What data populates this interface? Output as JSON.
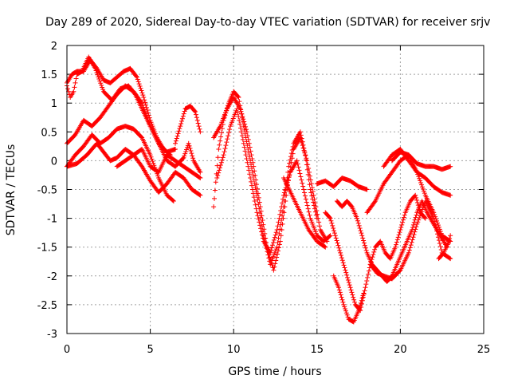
{
  "chart_data": {
    "type": "scatter",
    "title": "Day 289 of 2020, Sidereal Day-to-day VTEC variation (SDTVAR) for receiver srjv",
    "xlabel": "GPS time / hours",
    "ylabel": "SDTVAR / TECUs",
    "xlim": [
      0,
      25
    ],
    "ylim": [
      -3,
      2
    ],
    "x_ticks": [
      0,
      5,
      10,
      15,
      20,
      25
    ],
    "y_ticks": [
      -3,
      -2.5,
      -2,
      -1.5,
      -1,
      -0.5,
      0,
      0.5,
      1,
      1.5,
      2
    ],
    "x_tick_labels": [
      "0",
      "5",
      "10",
      "15",
      "20",
      "25"
    ],
    "y_tick_labels": [
      "-3",
      "-2.5",
      "-2",
      "-1.5",
      "-1",
      "-0.5",
      "0",
      "0.5",
      "1",
      "1.5",
      "2"
    ],
    "grid": true,
    "marker": "+",
    "marker_color": "#ff0000",
    "series": [
      {
        "x": [
          0.0,
          0.3,
          0.6,
          1.0,
          1.4,
          1.8,
          2.2,
          2.6,
          3.0,
          3.4,
          3.8,
          4.2,
          4.6,
          5.0,
          5.4,
          5.8,
          6.2
        ],
        "y": [
          1.35,
          1.5,
          1.55,
          1.55,
          1.75,
          1.6,
          1.4,
          1.35,
          1.45,
          1.55,
          1.6,
          1.45,
          1.1,
          0.7,
          0.4,
          0.2,
          0.1
        ]
      },
      {
        "x": [
          0.0,
          0.2,
          0.4,
          0.6,
          0.9,
          1.3,
          1.7,
          2.2,
          2.7,
          3.2,
          3.7,
          4.1,
          4.5,
          5.0,
          5.5,
          6.0,
          6.5
        ],
        "y": [
          1.3,
          1.1,
          1.2,
          1.5,
          1.55,
          1.8,
          1.6,
          1.2,
          1.05,
          1.25,
          1.3,
          1.15,
          0.9,
          0.6,
          0.3,
          0.15,
          0.2
        ]
      },
      {
        "x": [
          0.0,
          0.5,
          1.0,
          1.5,
          2.0,
          2.5,
          3.0,
          3.5,
          4.0,
          4.5,
          5.0,
          5.5,
          6.0,
          6.5,
          7.0,
          7.3,
          7.6,
          8.0
        ],
        "y": [
          0.3,
          0.45,
          0.7,
          0.6,
          0.75,
          0.95,
          1.15,
          1.3,
          1.2,
          1.0,
          0.6,
          0.3,
          0.0,
          -0.1,
          0.05,
          0.3,
          0.0,
          -0.2
        ]
      },
      {
        "x": [
          0.0,
          0.5,
          1.0,
          1.5,
          2.0,
          2.5,
          3.0,
          3.5,
          4.0,
          4.5,
          5.0,
          5.5,
          6.0,
          6.4
        ],
        "y": [
          -0.1,
          0.1,
          0.25,
          0.45,
          0.3,
          0.4,
          0.55,
          0.6,
          0.55,
          0.4,
          0.1,
          -0.3,
          -0.6,
          -0.7
        ]
      },
      {
        "x": [
          0.0,
          0.6,
          1.2,
          1.8,
          2.2,
          2.6,
          3.0,
          3.5,
          4.0,
          4.5,
          5.0,
          5.5,
          6.0,
          6.5,
          7.0,
          7.5,
          8.0
        ],
        "y": [
          -0.1,
          -0.05,
          0.1,
          0.3,
          0.15,
          0.0,
          0.05,
          0.2,
          0.1,
          -0.1,
          -0.35,
          -0.55,
          -0.4,
          -0.2,
          -0.3,
          -0.5,
          -0.6
        ]
      },
      {
        "x": [
          3.0,
          3.5,
          4.0,
          4.5,
          5.0,
          5.5,
          6.0,
          6.5,
          7.0,
          7.5,
          8.0
        ],
        "y": [
          -0.1,
          0.0,
          0.1,
          0.2,
          -0.1,
          -0.2,
          0.1,
          0.0,
          -0.1,
          -0.2,
          -0.3
        ]
      },
      {
        "x": [
          6.5,
          6.8,
          7.1,
          7.4,
          7.7,
          8.0
        ],
        "y": [
          0.3,
          0.6,
          0.9,
          0.95,
          0.85,
          0.5
        ]
      },
      {
        "x": [
          8.8,
          9.1,
          9.4,
          9.7,
          10.0,
          10.3,
          10.6,
          11.0,
          11.4,
          11.8,
          12.2,
          12.6,
          13.0,
          13.3,
          13.6,
          14.0,
          14.3,
          14.6,
          15.0
        ],
        "y": [
          -0.8,
          0.2,
          0.7,
          1.0,
          1.2,
          1.1,
          0.6,
          0.0,
          -0.6,
          -1.3,
          -1.8,
          -1.5,
          -0.8,
          -0.1,
          0.3,
          0.5,
          0.1,
          -0.5,
          -1.0
        ]
      },
      {
        "x": [
          8.8,
          9.2,
          9.6,
          10.0,
          10.4,
          10.8,
          11.2,
          11.6,
          12.0,
          12.4,
          12.8,
          13.2,
          13.6,
          14.0,
          14.4,
          14.8,
          15.2,
          15.6
        ],
        "y": [
          0.4,
          0.6,
          0.9,
          1.1,
          0.9,
          0.5,
          -0.1,
          -0.8,
          -1.5,
          -1.9,
          -1.4,
          -0.5,
          0.2,
          0.4,
          0.0,
          -0.6,
          -1.2,
          -1.4
        ]
      },
      {
        "x": [
          9.0,
          9.4,
          9.8,
          10.2,
          10.6,
          11.0,
          11.4,
          11.8,
          12.2,
          12.6,
          13.0,
          13.4,
          13.8,
          14.2,
          14.6,
          15.0,
          15.4,
          15.8
        ],
        "y": [
          -0.3,
          0.1,
          0.6,
          0.9,
          0.3,
          -0.3,
          -0.9,
          -1.4,
          -1.6,
          -1.2,
          -0.6,
          -0.2,
          0.0,
          -0.5,
          -1.0,
          -1.3,
          -1.4,
          -1.3
        ]
      },
      {
        "x": [
          13.0,
          13.5,
          14.0,
          14.5,
          15.0,
          15.5
        ],
        "y": [
          -0.3,
          -0.6,
          -0.9,
          -1.2,
          -1.4,
          -1.5
        ]
      },
      {
        "x": [
          15.0,
          15.5,
          16.0,
          16.5,
          17.0,
          17.5,
          18.0
        ],
        "y": [
          -0.4,
          -0.35,
          -0.45,
          -0.3,
          -0.35,
          -0.45,
          -0.5
        ]
      },
      {
        "x": [
          15.5,
          15.8,
          16.1,
          16.4,
          16.7,
          17.0,
          17.3,
          17.6,
          17.9,
          18.2,
          18.5,
          18.8,
          19.1,
          19.4,
          19.7,
          20.0,
          20.3,
          20.6,
          20.9,
          21.2,
          21.5
        ],
        "y": [
          -0.9,
          -1.0,
          -1.3,
          -1.6,
          -1.9,
          -2.2,
          -2.5,
          -2.6,
          -2.2,
          -1.8,
          -1.5,
          -1.4,
          -1.6,
          -1.7,
          -1.5,
          -1.2,
          -0.9,
          -0.7,
          -0.6,
          -0.9,
          -1.0
        ]
      },
      {
        "x": [
          16.2,
          16.5,
          16.8,
          17.1,
          17.4,
          17.7,
          18.0,
          18.3,
          18.6,
          18.9,
          19.2,
          19.5,
          19.8,
          20.1,
          20.4,
          20.7,
          21.0,
          21.3,
          21.6,
          22.0,
          22.4,
          22.8,
          23.0
        ],
        "y": [
          -0.7,
          -0.8,
          -0.7,
          -0.8,
          -1.0,
          -1.3,
          -1.6,
          -1.8,
          -1.9,
          -2.0,
          -2.1,
          -2.0,
          -1.8,
          -1.6,
          -1.4,
          -1.2,
          -0.9,
          -0.7,
          -0.9,
          -1.1,
          -1.3,
          -1.5,
          -1.3
        ]
      },
      {
        "x": [
          16.0,
          16.3,
          16.6,
          16.9,
          17.2,
          17.5,
          17.8
        ],
        "y": [
          -2.0,
          -2.2,
          -2.5,
          -2.75,
          -2.8,
          -2.6,
          -2.3
        ]
      },
      {
        "x": [
          18.0,
          18.5,
          19.0,
          19.5,
          20.0,
          20.5,
          21.0,
          21.5,
          22.0,
          22.5,
          23.0
        ],
        "y": [
          -0.9,
          -0.7,
          -0.4,
          -0.2,
          0.0,
          0.1,
          -0.05,
          -0.1,
          -0.1,
          -0.15,
          -0.1
        ]
      },
      {
        "x": [
          19.0,
          19.5,
          20.0,
          20.5,
          21.0,
          21.5,
          22.0,
          22.5,
          23.0
        ],
        "y": [
          -0.1,
          0.1,
          0.2,
          0.0,
          -0.2,
          -0.3,
          -0.45,
          -0.55,
          -0.6
        ]
      },
      {
        "x": [
          19.5,
          20.0,
          20.5,
          21.0,
          21.5,
          22.0,
          22.5,
          23.0
        ],
        "y": [
          0.0,
          0.15,
          0.1,
          -0.2,
          -0.6,
          -0.9,
          -1.3,
          -1.4
        ]
      },
      {
        "x": [
          18.2,
          18.6,
          19.0,
          19.5,
          20.0,
          20.5,
          21.0,
          21.5,
          22.0,
          22.5,
          23.0
        ],
        "y": [
          -1.8,
          -1.95,
          -2.0,
          -2.05,
          -1.9,
          -1.6,
          -1.1,
          -0.7,
          -1.0,
          -1.6,
          -1.7
        ]
      },
      {
        "x": [
          22.3,
          22.6,
          22.9
        ],
        "y": [
          -1.7,
          -1.6,
          -1.4
        ]
      }
    ]
  }
}
